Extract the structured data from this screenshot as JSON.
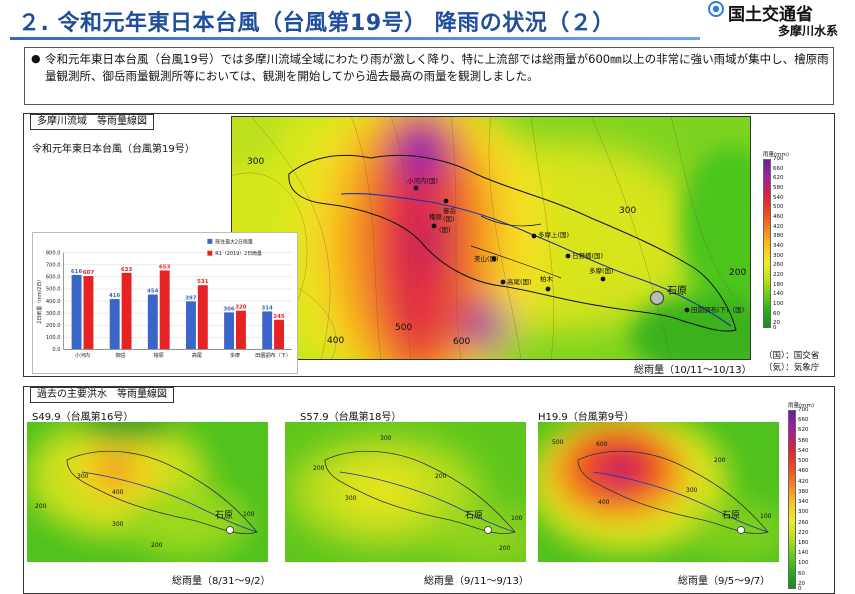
{
  "header": {
    "title": "２. 令和元年東日本台風（台風第19号） 降雨の状況（２）",
    "org": "国土交通省",
    "sub": "多摩川水系",
    "accent": "#1f4f9c"
  },
  "summary": {
    "bullet": "●",
    "text": "令和元年東日本台風（台風19号）では多摩川流域全域にわたり雨が激しく降り、特に上流部では総雨量が600㎜以上の非常に強い雨域が集中し、檜原雨量観測所、御岳雨量観測所等においては、観測を開始してから過去最高の雨量を観測しました。"
  },
  "top_panel": {
    "tab_label": "多摩川流域　等雨量線図",
    "subtitle": "令和元年東日本台風（台風第19号）",
    "caption": "総雨量（10/11～10/13）",
    "note_1": "（国）：国交省",
    "note_2": "（気）：気象庁",
    "map_labels": {
      "c300a": "300",
      "c300b": "300",
      "c400": "400",
      "c500": "500",
      "c600": "600",
      "c200": "200",
      "ogouchi": "小河内(国)",
      "mitake": "御岳",
      "mitake2": "(国)",
      "hinohara": "檜原",
      "hinohara2": "(国)",
      "tamakami": "多摩上(国)",
      "hinobashi": "日野橋(国)",
      "tamayama": "美山(国)",
      "takao": "高尾(国)",
      "hachioji": "柏木",
      "tama": "多摩(国)",
      "ishihara": "石原",
      "denenchofu": "田園調布(下)（国)"
    }
  },
  "legend": {
    "title": "雨量(mm)",
    "ticks": [
      "700",
      "680",
      "660",
      "640",
      "620",
      "600",
      "580",
      "560",
      "540",
      "520",
      "500",
      "480",
      "460",
      "440",
      "420",
      "400",
      "380",
      "360",
      "340",
      "320",
      "300",
      "280",
      "260",
      "240",
      "220",
      "200",
      "180",
      "160",
      "140",
      "120",
      "100",
      "80",
      "60",
      "40",
      "20",
      "0"
    ]
  },
  "chart_data": {
    "type": "bar",
    "categories": [
      "小河内",
      "御岳",
      "檜原",
      "高尾",
      "多摩",
      "田園調布（下）"
    ],
    "series": [
      {
        "name": "既往最大2日雨量",
        "values": [
          616,
          416,
          454,
          397,
          306,
          314
        ],
        "color": "#3a66c9"
      },
      {
        "name": "R1（2019）2日雨量",
        "values": [
          607,
          633,
          653,
          531,
          320,
          245
        ],
        "color": "#e62222"
      }
    ],
    "ylabel": "2日雨量（mm/2日）",
    "ylim": [
      0,
      800
    ],
    "yticks": [
      "0.0",
      "100.0",
      "200.0",
      "300.0",
      "400.0",
      "500.0",
      "600.0",
      "700.0",
      "800.0"
    ],
    "grid": true,
    "legend_position": "top-right"
  },
  "bottom_panel": {
    "tab_label": "過去の主要洪水　等雨量線図",
    "maps": [
      {
        "title": "S49.9（台風第16号）",
        "caption": "総雨量（8/31～9/2）",
        "ishihara": "石原",
        "labels": {
          "a": "400",
          "b": "300",
          "c": "200",
          "d": "300",
          "e": "200",
          "f": "100"
        }
      },
      {
        "title": "S57.9（台風第18号）",
        "caption": "総雨量（9/11～9/13）",
        "ishihara": "石原",
        "labels": {
          "a": "300",
          "b": "200",
          "c": "300",
          "d": "200",
          "e": "200",
          "f": "100"
        }
      },
      {
        "title": "H19.9（台風第9号）",
        "caption": "総雨量（9/5～9/7）",
        "ishihara": "石原",
        "labels": {
          "a": "500",
          "b": "600",
          "c": "400",
          "d": "300",
          "e": "200",
          "f": "100"
        }
      }
    ]
  }
}
